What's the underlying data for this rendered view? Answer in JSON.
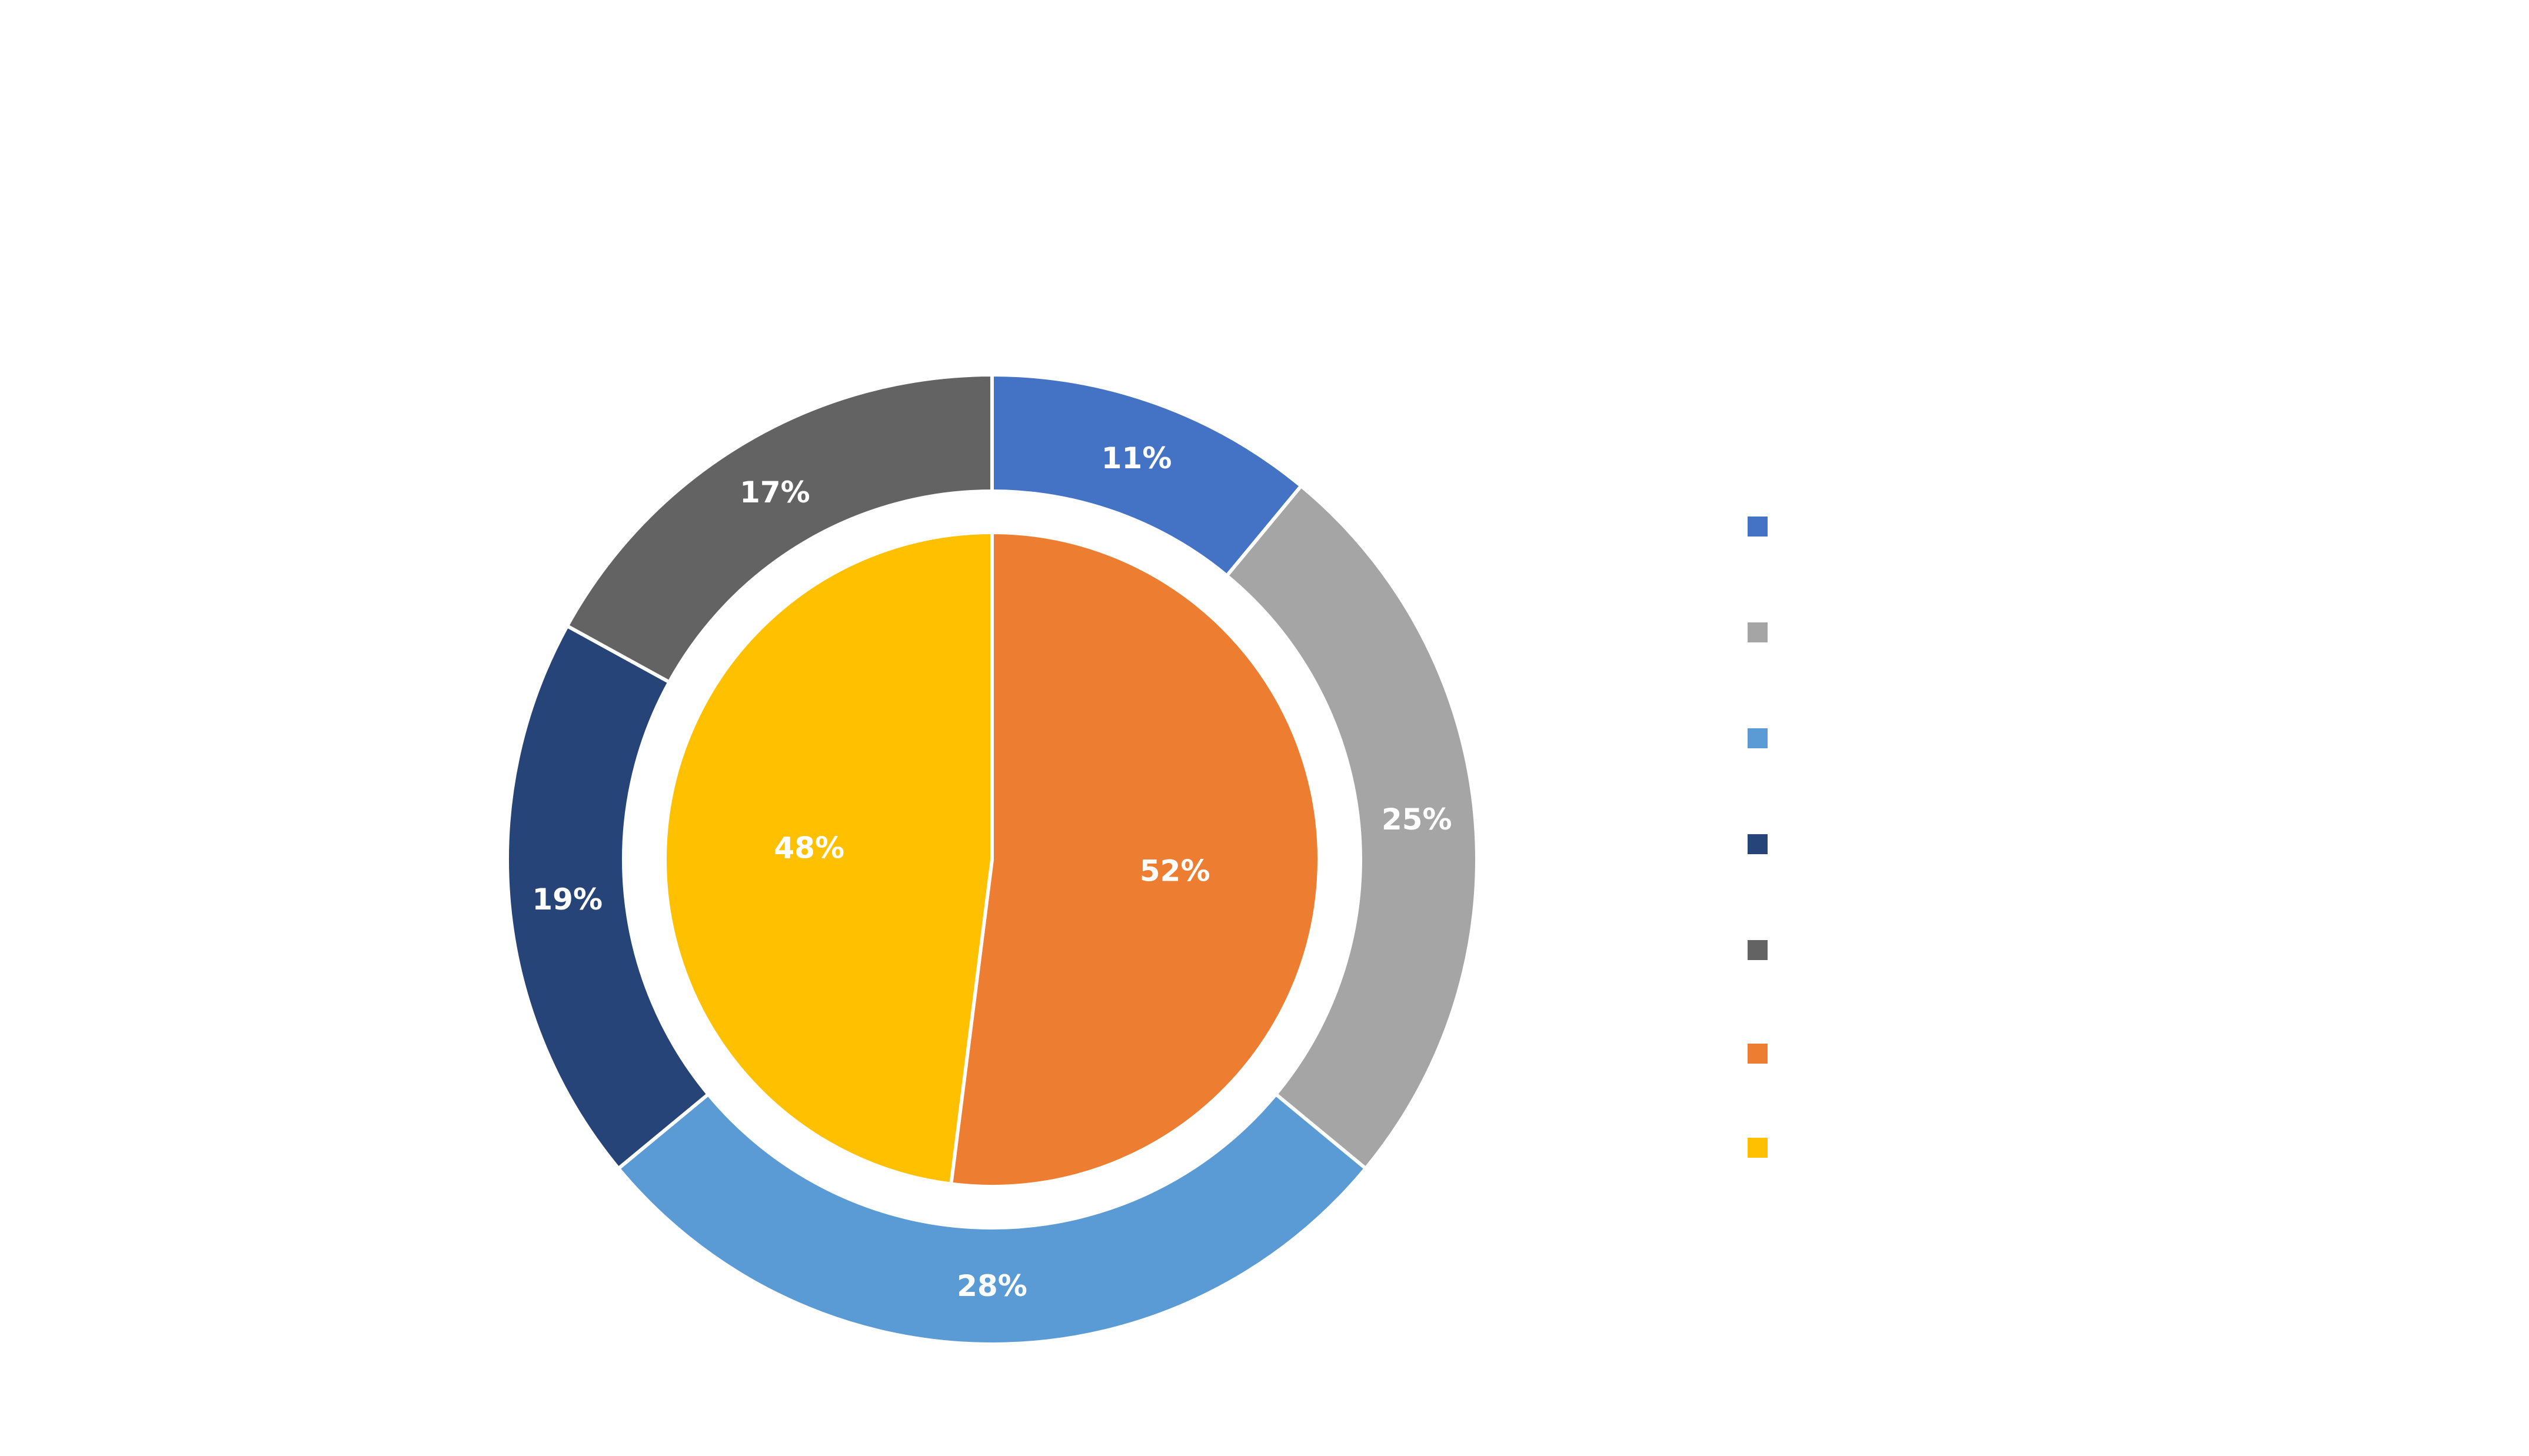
{
  "chart_data": {
    "type": "pie",
    "variant": "donut-with-inner-pie",
    "title": "",
    "legend_position": "right",
    "outer_ring": {
      "slices": [
        {
          "value": 11,
          "label": "11%",
          "color": "#4472c4"
        },
        {
          "value": 25,
          "label": "25%",
          "color": "#a5a5a5"
        },
        {
          "value": 28,
          "label": "28%",
          "color": "#5b9bd5"
        },
        {
          "value": 19,
          "label": "19%",
          "color": "#264478"
        },
        {
          "value": 17,
          "label": "17%",
          "color": "#636363"
        }
      ]
    },
    "inner_pie": {
      "slices": [
        {
          "value": 52,
          "label": "52%",
          "color": "#ed7d31"
        },
        {
          "value": 48,
          "label": "48%",
          "color": "#ffc000"
        }
      ]
    },
    "legend_swatches": [
      "#4472c4",
      "#a5a5a5",
      "#5b9bd5",
      "#264478",
      "#636363",
      "#ed7d31",
      "#ffc000"
    ]
  }
}
